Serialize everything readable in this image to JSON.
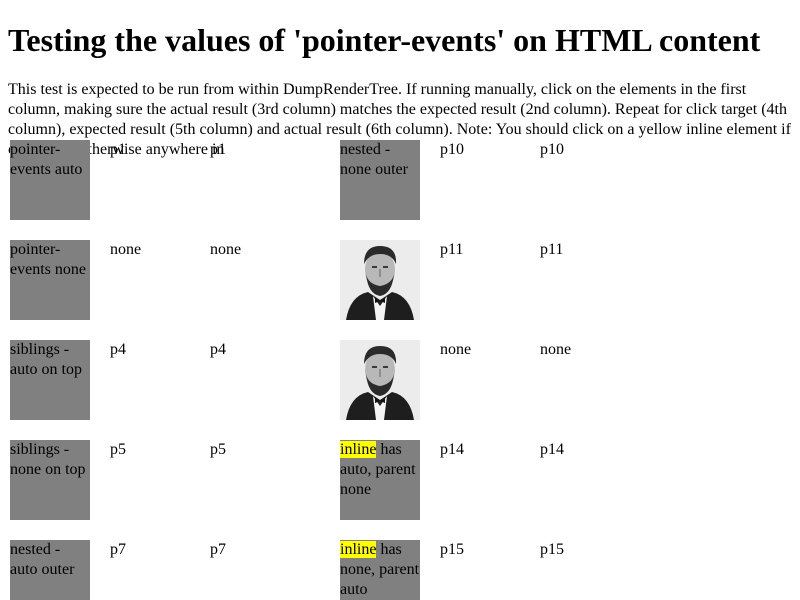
{
  "title": "Testing the values of 'pointer-events' on HTML content",
  "intro": "This test is expected to be run from within DumpRenderTree. If running manually, click on the elements in the first column, making sure the actual result (3rd column) matches the expected result (2nd column). Repeat for click target (4th column), expected result (5th column) and actual result (6th column). Note: You should click on a yellow inline element if one exists, otherwise anywhere in",
  "rows": [
    {
      "target": "pointer-events auto",
      "expected": "p1",
      "actual": "p1",
      "target2": "nested - none outer",
      "expected2": "p10",
      "actual2": "p10"
    },
    {
      "target": "pointer-events none",
      "expected": "none",
      "actual": "none",
      "target2_image": "portrait-photo",
      "expected2": "p11",
      "actual2": "p11"
    },
    {
      "target": "siblings - auto on top",
      "expected": "p4",
      "actual": "p4",
      "target2_image": "portrait-photo",
      "expected2": "none",
      "actual2": "none"
    },
    {
      "target": "siblings - none on top",
      "expected": "p5",
      "actual": "p5",
      "target2_inline": "inline",
      "target2_rest": " has auto, parent none",
      "expected2": "p14",
      "actual2": "p14"
    },
    {
      "target": "nested - auto outer",
      "expected": "p7",
      "actual": "p7",
      "target2_inline": "inline",
      "target2_rest": " has none, parent auto",
      "expected2": "p15",
      "actual2": "p15"
    }
  ],
  "colors": {
    "box": "#808080",
    "highlight": "#ffff00",
    "text": "#000000",
    "background": "#ffffff"
  }
}
